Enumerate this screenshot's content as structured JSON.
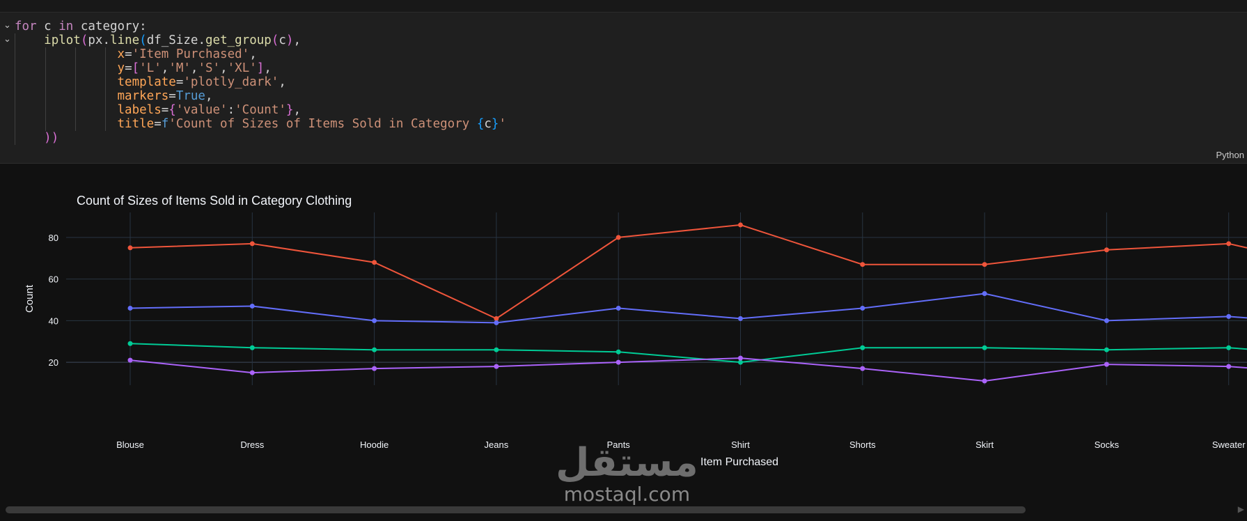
{
  "code": {
    "language": "Python",
    "lines": [
      [
        {
          "t": "for",
          "c": "kw"
        },
        {
          "t": " c ",
          "c": "var"
        },
        {
          "t": "in",
          "c": "kw"
        },
        {
          "t": " category:",
          "c": "var"
        }
      ],
      [
        {
          "t": "    ",
          "c": "var"
        },
        {
          "t": "iplot",
          "c": "fn"
        },
        {
          "t": "(",
          "c": "brk1"
        },
        {
          "t": "px.",
          "c": "var"
        },
        {
          "t": "line",
          "c": "fn"
        },
        {
          "t": "(",
          "c": "brk2"
        },
        {
          "t": "df_Size.",
          "c": "var"
        },
        {
          "t": "get_group",
          "c": "fn"
        },
        {
          "t": "(",
          "c": "brk1"
        },
        {
          "t": "c",
          "c": "var"
        },
        {
          "t": ")",
          "c": "brk1"
        },
        {
          "t": ",",
          "c": "var"
        }
      ],
      [
        {
          "t": "              ",
          "c": "var"
        },
        {
          "t": "x",
          "c": "attr"
        },
        {
          "t": "=",
          "c": "var"
        },
        {
          "t": "'Item Purchased'",
          "c": "str"
        },
        {
          "t": ",",
          "c": "var"
        }
      ],
      [
        {
          "t": "              ",
          "c": "var"
        },
        {
          "t": "y",
          "c": "attr"
        },
        {
          "t": "=",
          "c": "var"
        },
        {
          "t": "[",
          "c": "brk1"
        },
        {
          "t": "'L'",
          "c": "str"
        },
        {
          "t": ",",
          "c": "var"
        },
        {
          "t": "'M'",
          "c": "str"
        },
        {
          "t": ",",
          "c": "var"
        },
        {
          "t": "'S'",
          "c": "str"
        },
        {
          "t": ",",
          "c": "var"
        },
        {
          "t": "'XL'",
          "c": "str"
        },
        {
          "t": "]",
          "c": "brk1"
        },
        {
          "t": ",",
          "c": "var"
        }
      ],
      [
        {
          "t": "              ",
          "c": "var"
        },
        {
          "t": "template",
          "c": "attr"
        },
        {
          "t": "=",
          "c": "var"
        },
        {
          "t": "'plotly_dark'",
          "c": "str"
        },
        {
          "t": ",",
          "c": "var"
        }
      ],
      [
        {
          "t": "              ",
          "c": "var"
        },
        {
          "t": "markers",
          "c": "attr"
        },
        {
          "t": "=",
          "c": "var"
        },
        {
          "t": "True",
          "c": "bool"
        },
        {
          "t": ",",
          "c": "var"
        }
      ],
      [
        {
          "t": "              ",
          "c": "var"
        },
        {
          "t": "labels",
          "c": "attr"
        },
        {
          "t": "=",
          "c": "var"
        },
        {
          "t": "{",
          "c": "brk1"
        },
        {
          "t": "'value'",
          "c": "str"
        },
        {
          "t": ":",
          "c": "var"
        },
        {
          "t": "'Count'",
          "c": "str"
        },
        {
          "t": "}",
          "c": "brk1"
        },
        {
          "t": ",",
          "c": "var"
        }
      ],
      [
        {
          "t": "              ",
          "c": "var"
        },
        {
          "t": "title",
          "c": "attr"
        },
        {
          "t": "=",
          "c": "var"
        },
        {
          "t": "f",
          "c": "bool"
        },
        {
          "t": "'Count of Sizes of Items Sold in Category ",
          "c": "str"
        },
        {
          "t": "{",
          "c": "brk2"
        },
        {
          "t": "c",
          "c": "var"
        },
        {
          "t": "}",
          "c": "brk2"
        },
        {
          "t": "'",
          "c": "str"
        }
      ],
      [
        {
          "t": "    ",
          "c": "var"
        },
        {
          "t": "))",
          "c": "brk1"
        }
      ]
    ]
  },
  "watermark": {
    "arabic": "مستقل",
    "latin": "mostaql.com"
  },
  "chart_data": {
    "type": "line",
    "title": "Count of Sizes of Items Sold in Category Clothing",
    "xlabel": "Item Purchased",
    "ylabel": "Count",
    "categories": [
      "Blouse",
      "Dress",
      "Hoodie",
      "Jeans",
      "Pants",
      "Shirt",
      "Shorts",
      "Skirt",
      "Socks",
      "Sweater"
    ],
    "yticks": [
      20,
      40,
      60,
      80
    ],
    "ylim": [
      9,
      92
    ],
    "grid": true,
    "series": [
      {
        "color": "#ef553b",
        "values": [
          75,
          77,
          68,
          41,
          80,
          86,
          67,
          67,
          74,
          77
        ]
      },
      {
        "color": "#636efa",
        "values": [
          46,
          47,
          40,
          39,
          46,
          41,
          46,
          53,
          40,
          42
        ]
      },
      {
        "color": "#00cc96",
        "values": [
          29,
          27,
          26,
          26,
          25,
          20,
          27,
          27,
          26,
          27
        ]
      },
      {
        "color": "#ab63fa",
        "values": [
          21,
          15,
          17,
          18,
          20,
          22,
          17,
          11,
          19,
          18
        ]
      }
    ]
  }
}
